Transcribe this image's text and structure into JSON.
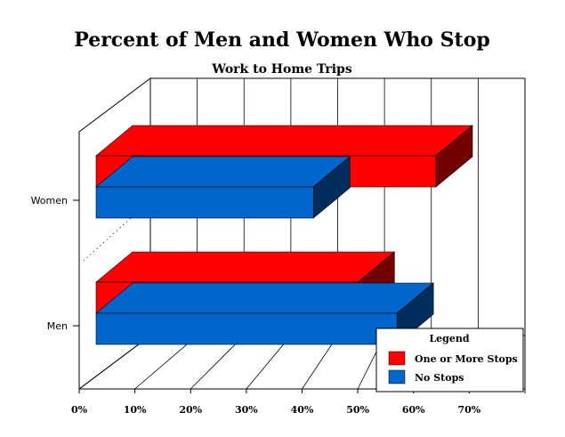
{
  "chart_data": {
    "type": "bar",
    "orientation": "horizontal",
    "title": "Percent of Men and Women Who Stop",
    "subtitle": "Work to Home Trips",
    "categories": [
      "Women",
      "Men"
    ],
    "series": [
      {
        "name": "One or More Stops",
        "values": [
          61,
          47
        ],
        "color": "#ff0000"
      },
      {
        "name": "No Stops",
        "values": [
          39,
          54
        ],
        "color": "#0066cc"
      }
    ],
    "xlim": [
      0,
      80
    ],
    "tick_labels": [
      "0%",
      "10%",
      "20%",
      "30%",
      "40%",
      "50%",
      "60%",
      "70%"
    ],
    "grid": true,
    "legend": {
      "title": "Legend",
      "position": "bottom-right"
    }
  }
}
